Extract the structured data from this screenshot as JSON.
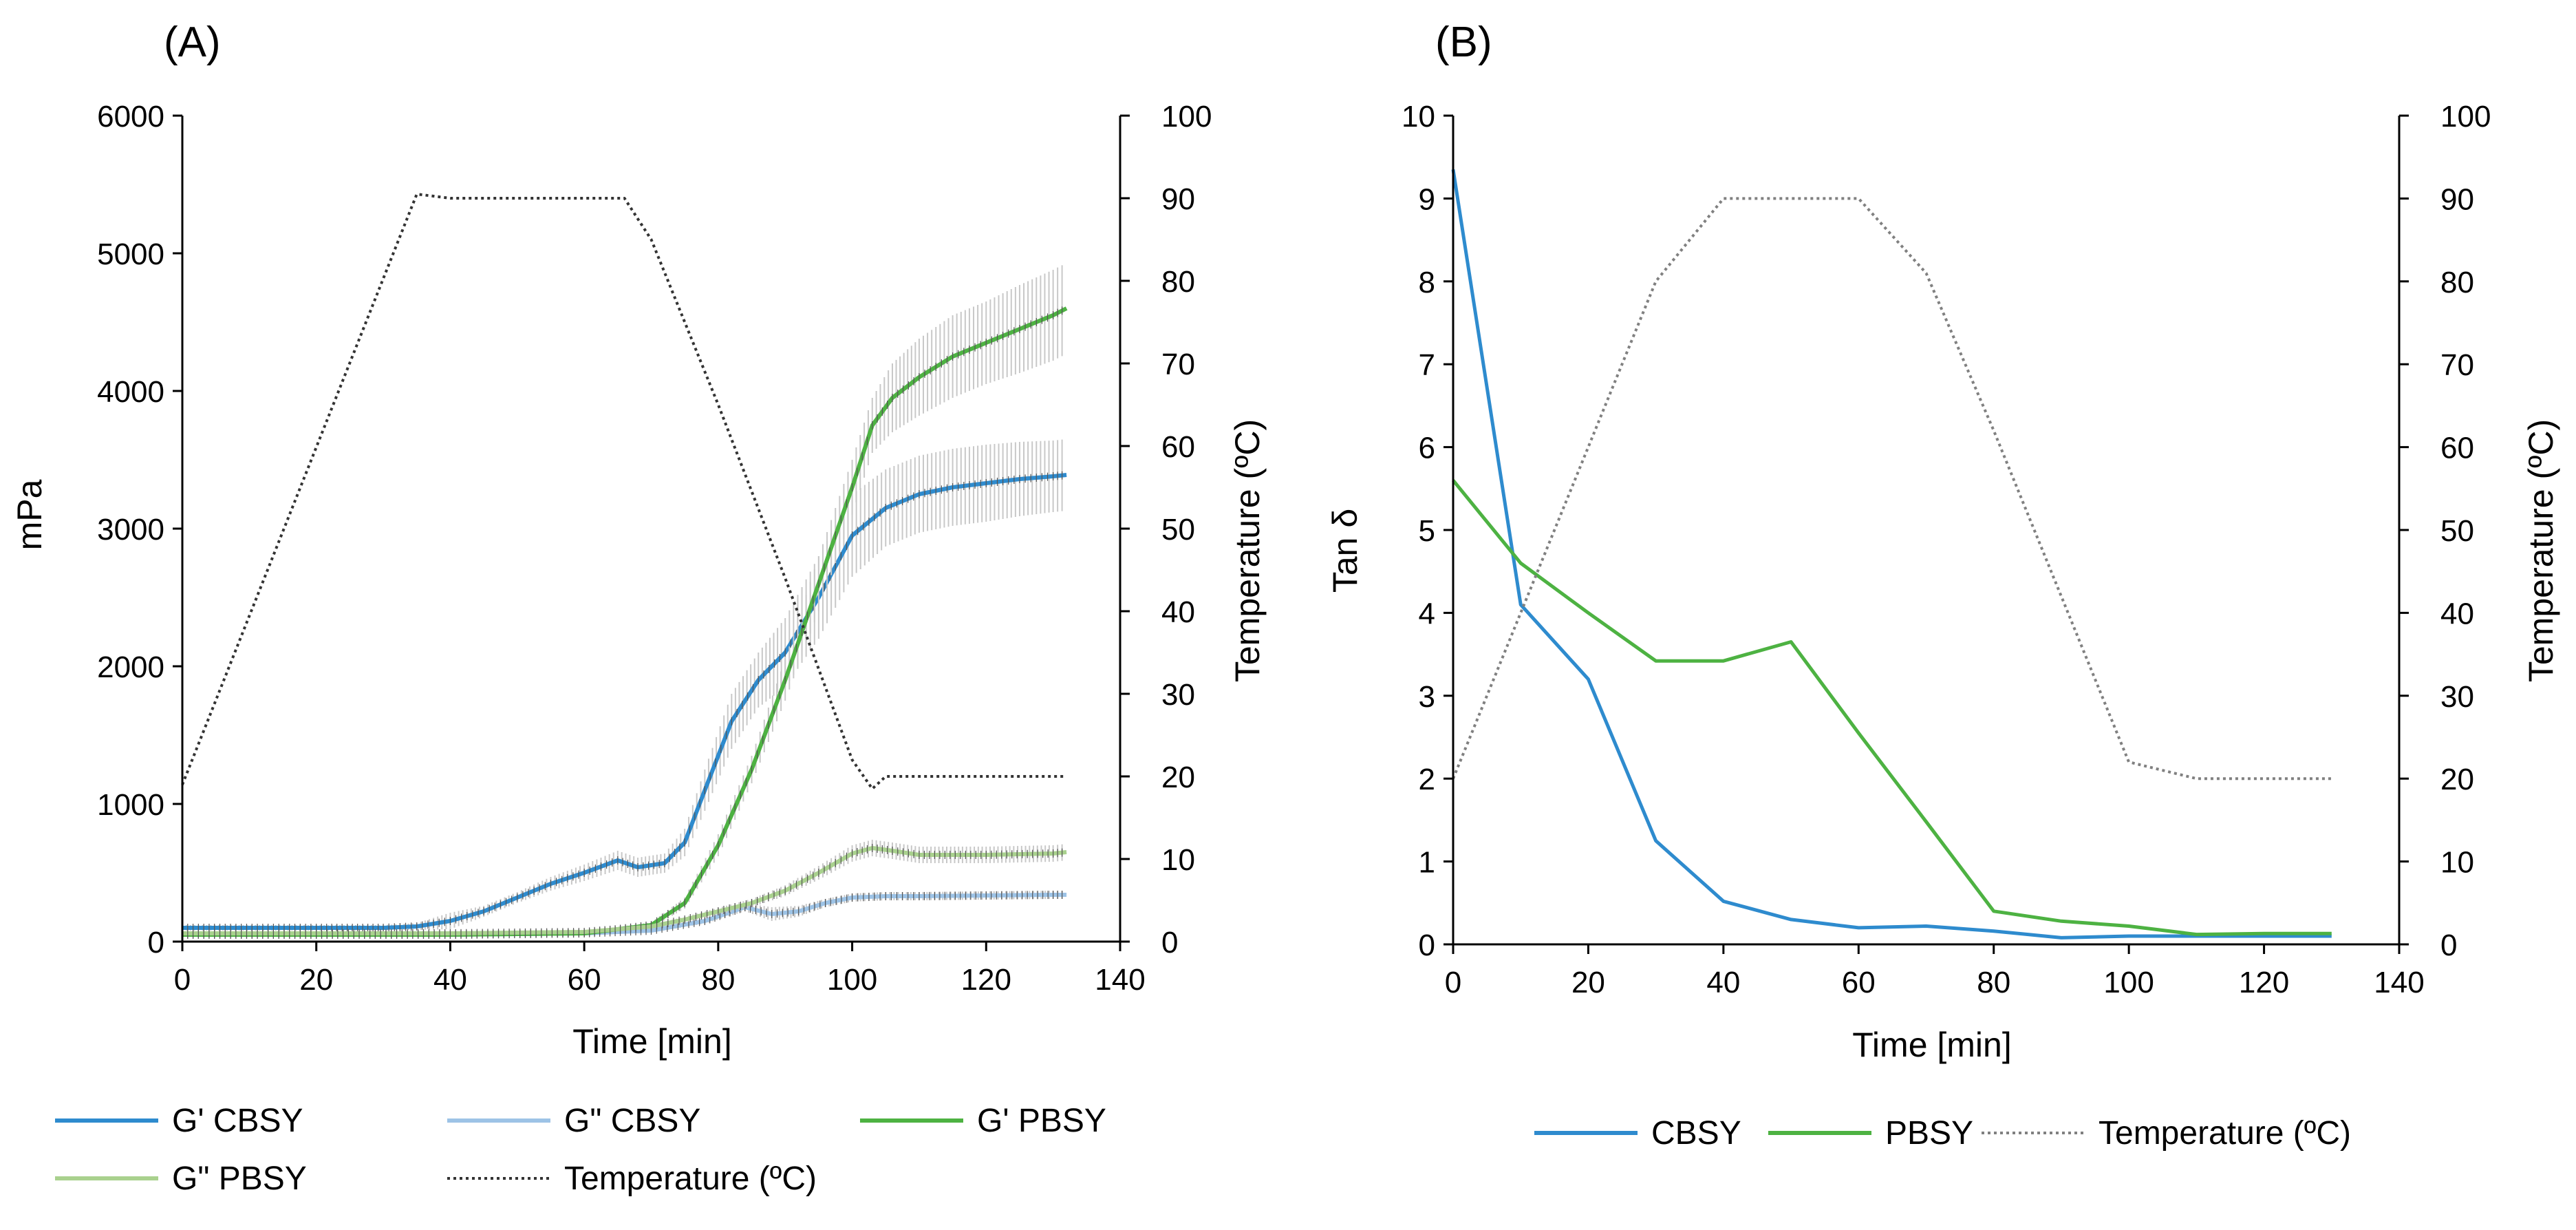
{
  "chart_data": [
    {
      "type": "line",
      "panel_label": "(A)",
      "xlabel": "Time [min]",
      "ylabel": "mPa",
      "y2label": "Temperature (ºC)",
      "xlim": [
        0,
        140
      ],
      "ylim": [
        0,
        6000
      ],
      "y2lim": [
        0,
        100
      ],
      "x_ticks": [
        "0",
        "20",
        "40",
        "60",
        "80",
        "100",
        "120",
        "140"
      ],
      "y_ticks": [
        "0",
        "1000",
        "2000",
        "3000",
        "4000",
        "5000",
        "6000"
      ],
      "y2_ticks": [
        "0",
        "10",
        "20",
        "30",
        "40",
        "50",
        "60",
        "70",
        "80",
        "90",
        "100"
      ],
      "error_bars": true,
      "series": [
        {
          "name": "G' CBSY",
          "axis": "left",
          "color": "#2E8BCE",
          "style": "solid",
          "x": [
            0,
            20,
            30,
            35,
            40,
            45,
            50,
            55,
            60,
            65,
            68,
            72,
            75,
            78,
            82,
            86,
            90,
            95,
            100,
            105,
            110,
            115,
            120,
            125,
            130,
            132
          ],
          "y": [
            100,
            100,
            100,
            110,
            150,
            220,
            320,
            420,
            500,
            590,
            540,
            570,
            720,
            1100,
            1600,
            1900,
            2100,
            2500,
            2950,
            3150,
            3250,
            3300,
            3330,
            3360,
            3380,
            3390
          ],
          "err": [
            20,
            20,
            20,
            25,
            60,
            40,
            40,
            50,
            60,
            70,
            70,
            70,
            100,
            150,
            200,
            200,
            250,
            300,
            300,
            280,
            280,
            280,
            280,
            270,
            260,
            260
          ]
        },
        {
          "name": "G\" CBSY",
          "axis": "left",
          "color": "#9DC3E6",
          "style": "solid",
          "x": [
            0,
            20,
            40,
            60,
            70,
            78,
            84,
            88,
            92,
            96,
            100,
            105,
            110,
            120,
            130,
            132
          ],
          "y": [
            50,
            50,
            50,
            60,
            80,
            150,
            250,
            200,
            220,
            280,
            320,
            330,
            330,
            335,
            340,
            340
          ],
          "err": [
            10,
            10,
            10,
            12,
            15,
            20,
            30,
            50,
            40,
            30,
            30,
            30,
            30,
            30,
            30,
            30
          ]
        },
        {
          "name": "G' PBSY",
          "axis": "left",
          "color": "#4DB242",
          "style": "solid",
          "x": [
            0,
            20,
            40,
            60,
            70,
            75,
            80,
            85,
            90,
            95,
            100,
            103,
            106,
            110,
            115,
            120,
            125,
            130,
            132
          ],
          "y": [
            50,
            50,
            50,
            60,
            120,
            280,
            700,
            1250,
            1900,
            2600,
            3300,
            3750,
            3950,
            4100,
            4250,
            4350,
            4450,
            4550,
            4600
          ],
          "err": [
            10,
            10,
            10,
            12,
            20,
            40,
            80,
            100,
            150,
            200,
            200,
            200,
            250,
            280,
            300,
            300,
            320,
            330,
            330
          ]
        },
        {
          "name": "G\" PBSY",
          "axis": "left",
          "color": "#A9D18E",
          "style": "solid",
          "x": [
            0,
            20,
            40,
            60,
            70,
            75,
            80,
            85,
            90,
            95,
            100,
            103,
            106,
            110,
            120,
            130,
            132
          ],
          "y": [
            60,
            60,
            60,
            70,
            110,
            160,
            220,
            280,
            370,
            500,
            640,
            680,
            660,
            630,
            630,
            640,
            650
          ],
          "err": [
            10,
            10,
            10,
            12,
            15,
            20,
            25,
            30,
            40,
            50,
            60,
            60,
            60,
            60,
            60,
            60,
            60
          ]
        },
        {
          "name": "Temperature (ºC)",
          "axis": "right",
          "color": "#333333",
          "style": "dotted",
          "x": [
            0,
            35,
            40,
            50,
            60,
            66,
            70,
            80,
            90,
            100,
            103,
            105,
            110,
            120,
            130,
            132
          ],
          "y": [
            19,
            90.5,
            90,
            90,
            90,
            90,
            85,
            65,
            44,
            22,
            18.5,
            20,
            20,
            20,
            20,
            20
          ]
        }
      ],
      "legend_placement": "bottom"
    },
    {
      "type": "line",
      "panel_label": "(B)",
      "xlabel": "Time [min]",
      "ylabel": "Tan δ",
      "y2label": "Temperature (ºC)",
      "xlim": [
        0,
        140
      ],
      "ylim": [
        0,
        10
      ],
      "y2lim": [
        0,
        100
      ],
      "x_ticks": [
        "0",
        "20",
        "40",
        "60",
        "80",
        "100",
        "120",
        "140"
      ],
      "y_ticks": [
        "0",
        "1",
        "2",
        "3",
        "4",
        "5",
        "6",
        "7",
        "8",
        "9",
        "10"
      ],
      "y2_ticks": [
        "0",
        "10",
        "20",
        "30",
        "40",
        "50",
        "60",
        "70",
        "80",
        "90",
        "100"
      ],
      "series": [
        {
          "name": "CBSY",
          "axis": "left",
          "color": "#2E8BCE",
          "style": "solid",
          "x": [
            0,
            10,
            20,
            30,
            40,
            50,
            60,
            70,
            80,
            90,
            100,
            110,
            120,
            130
          ],
          "y": [
            9.35,
            4.1,
            3.2,
            1.25,
            0.52,
            0.3,
            0.2,
            0.22,
            0.16,
            0.08,
            0.1,
            0.1,
            0.1,
            0.1
          ]
        },
        {
          "name": "PBSY",
          "axis": "left",
          "color": "#4DB242",
          "style": "solid",
          "x": [
            0,
            10,
            20,
            30,
            40,
            50,
            60,
            70,
            80,
            90,
            100,
            110,
            120,
            130
          ],
          "y": [
            5.6,
            4.6,
            4.0,
            3.42,
            3.42,
            3.65,
            2.55,
            1.48,
            0.4,
            0.28,
            0.22,
            0.12,
            0.13,
            0.13
          ]
        },
        {
          "name": "Temperature (ºC)",
          "axis": "right",
          "color": "#808080",
          "style": "dotted",
          "x": [
            0,
            10,
            20,
            30,
            40,
            50,
            60,
            70,
            80,
            90,
            100,
            110,
            120,
            130
          ],
          "y": [
            20,
            40,
            60,
            80,
            90,
            90,
            90,
            81,
            62,
            42,
            22,
            20,
            20,
            20
          ]
        }
      ],
      "legend_placement": "bottom"
    }
  ]
}
